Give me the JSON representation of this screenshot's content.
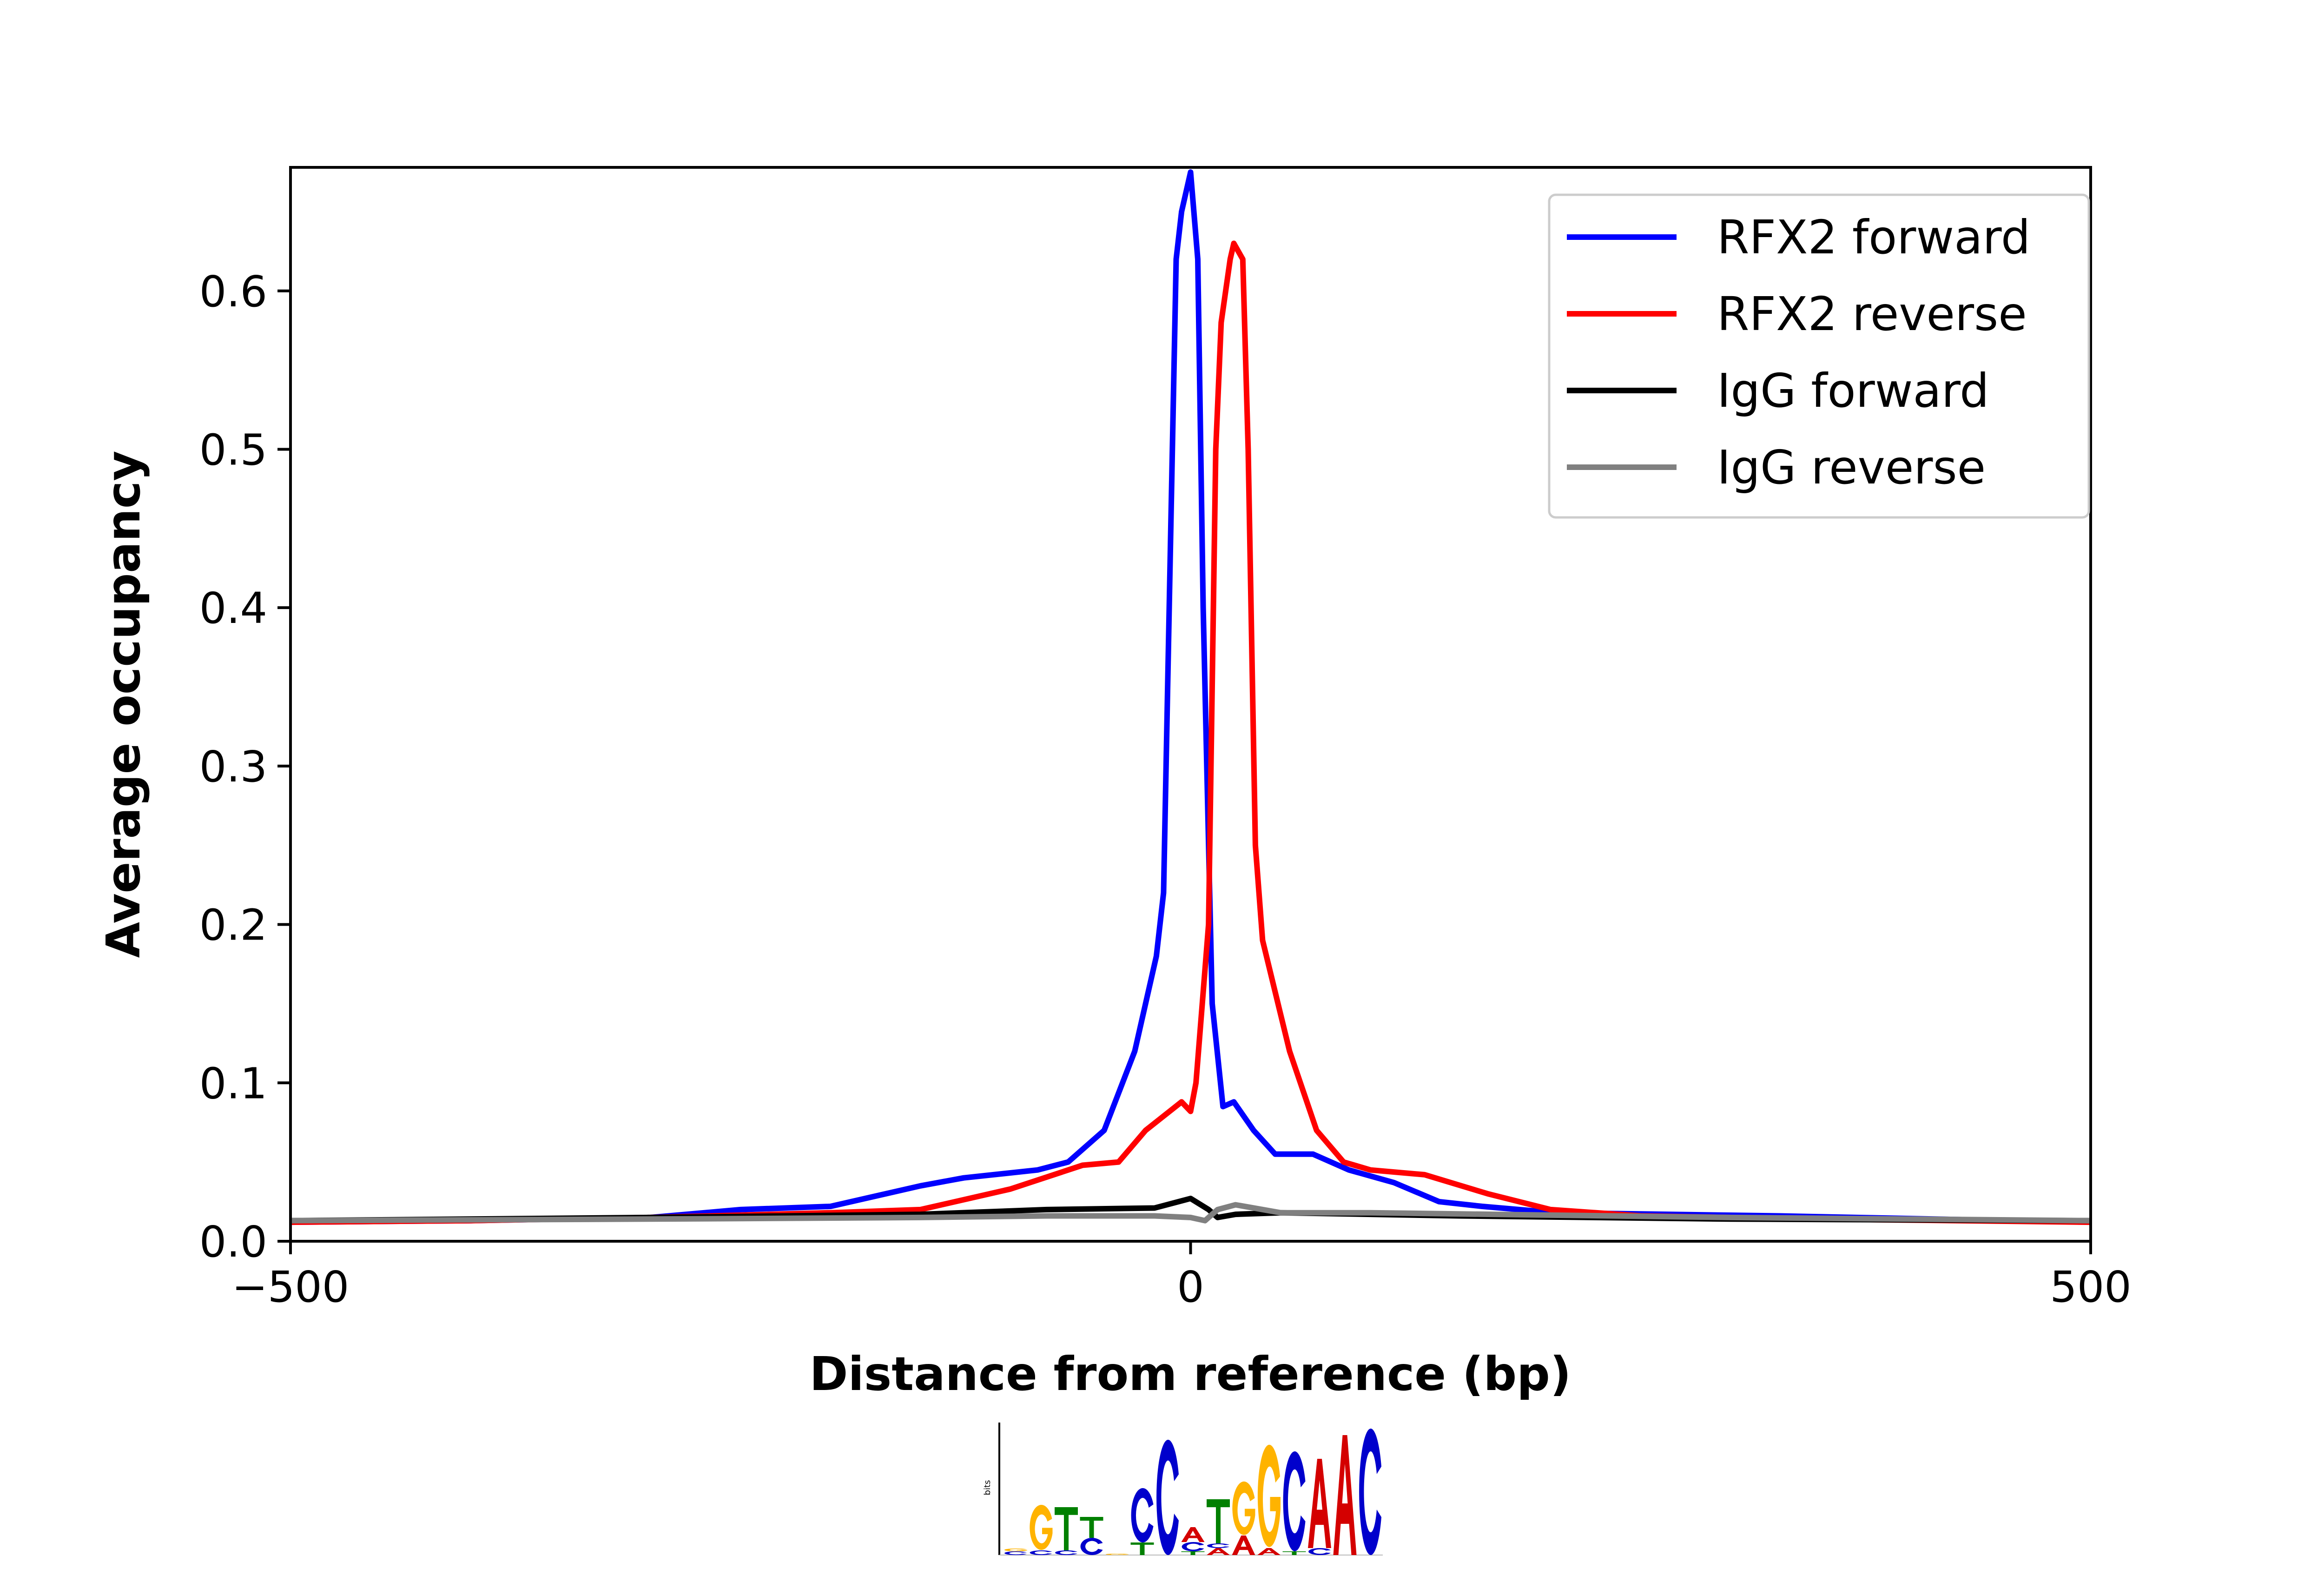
{
  "chart_data": {
    "type": "line",
    "title": "",
    "xlabel": "Distance from reference (bp)",
    "ylabel": "Average occupancy",
    "xlim": [
      -500,
      500
    ],
    "ylim": [
      0,
      0.678
    ],
    "xticks": [
      -500,
      0,
      500
    ],
    "xtick_labels": [
      "−500",
      "0",
      "500"
    ],
    "yticks": [
      0.0,
      0.1,
      0.2,
      0.3,
      0.4,
      0.5,
      0.6
    ],
    "ytick_labels": [
      "0.0",
      "0.1",
      "0.2",
      "0.3",
      "0.4",
      "0.5",
      "0.6"
    ],
    "grid": false,
    "legend_position": "top-right",
    "series": [
      {
        "name": "RFX2 forward",
        "color": "#0000ff",
        "x": [
          -500,
          -400,
          -300,
          -250,
          -200,
          -150,
          -126,
          -85,
          -68,
          -48,
          -31,
          -19,
          -15,
          -11,
          -8,
          -5,
          0,
          4,
          7,
          12,
          18,
          24,
          35,
          47,
          68,
          88,
          113,
          138,
          162,
          203,
          327,
          500
        ],
        "y": [
          0.012,
          0.013,
          0.015,
          0.02,
          0.022,
          0.035,
          0.04,
          0.045,
          0.05,
          0.07,
          0.12,
          0.18,
          0.22,
          0.45,
          0.62,
          0.65,
          0.675,
          0.62,
          0.4,
          0.15,
          0.085,
          0.088,
          0.07,
          0.055,
          0.055,
          0.045,
          0.037,
          0.025,
          0.022,
          0.018,
          0.016,
          0.012
        ]
      },
      {
        "name": "RFX2 reverse",
        "color": "#ff0000",
        "x": [
          -500,
          -400,
          -300,
          -200,
          -150,
          -100,
          -60,
          -40,
          -25,
          -5,
          0,
          3,
          10,
          14,
          17,
          22,
          24,
          29,
          32,
          36,
          40,
          55,
          70,
          85,
          100,
          130,
          165,
          200,
          250,
          350,
          500
        ],
        "y": [
          0.012,
          0.013,
          0.015,
          0.018,
          0.02,
          0.033,
          0.048,
          0.05,
          0.07,
          0.088,
          0.082,
          0.1,
          0.2,
          0.5,
          0.58,
          0.62,
          0.63,
          0.62,
          0.5,
          0.25,
          0.19,
          0.12,
          0.07,
          0.05,
          0.045,
          0.042,
          0.03,
          0.02,
          0.016,
          0.014,
          0.012
        ]
      },
      {
        "name": "IgG forward",
        "color": "#000000",
        "x": [
          -500,
          -300,
          -150,
          -80,
          -20,
          0,
          10,
          15,
          25,
          50,
          150,
          300,
          500
        ],
        "y": [
          0.013,
          0.015,
          0.017,
          0.02,
          0.021,
          0.027,
          0.02,
          0.015,
          0.017,
          0.018,
          0.016,
          0.014,
          0.013
        ]
      },
      {
        "name": "IgG reverse",
        "color": "#808080",
        "x": [
          -500,
          -300,
          -150,
          -80,
          -20,
          0,
          8,
          15,
          25,
          50,
          100,
          300,
          500
        ],
        "y": [
          0.013,
          0.014,
          0.015,
          0.016,
          0.016,
          0.015,
          0.013,
          0.02,
          0.023,
          0.018,
          0.018,
          0.015,
          0.013
        ]
      }
    ]
  },
  "motif_logo": {
    "y_label": "bits",
    "colors": {
      "A": "#d40000",
      "C": "#0000cc",
      "G": "#ffb300",
      "T": "#008000"
    },
    "columns": [
      [
        [
          "C",
          8
        ],
        [
          "G",
          6
        ]
      ],
      [
        [
          "C",
          10
        ],
        [
          "G",
          97
        ]
      ],
      [
        [
          "C",
          10
        ],
        [
          "T",
          93
        ]
      ],
      [
        [
          "C",
          37
        ],
        [
          "T",
          45
        ]
      ],
      [
        [
          "G",
          3
        ]
      ],
      [
        [
          "T",
          27
        ],
        [
          "C",
          117
        ]
      ],
      [
        [
          "C",
          248
        ]
      ],
      [
        [
          "T",
          8
        ],
        [
          "C",
          20
        ],
        [
          "A",
          32
        ]
      ],
      [
        [
          "A",
          15
        ],
        [
          "C",
          10
        ],
        [
          "T",
          95
        ]
      ],
      [
        [
          "A",
          42
        ],
        [
          "G",
          115
        ]
      ],
      [
        [
          "A",
          15
        ],
        [
          "G",
          220
        ]
      ],
      [
        [
          "T",
          8
        ],
        [
          "C",
          215
        ]
      ],
      [
        [
          "C",
          15
        ],
        [
          "A",
          192
        ]
      ],
      [
        [
          "A",
          258
        ]
      ],
      [
        [
          "C",
          272
        ]
      ]
    ]
  }
}
